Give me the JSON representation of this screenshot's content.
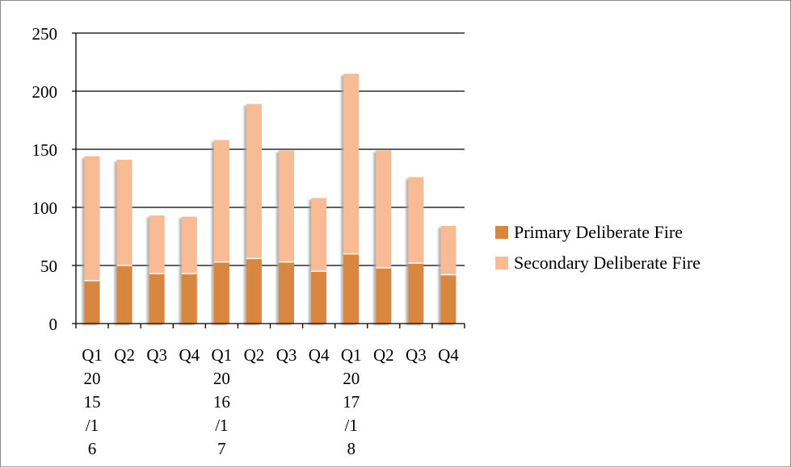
{
  "chart_data": {
    "type": "bar",
    "stacked": true,
    "categories": [
      "Q1 2015/16",
      "Q2",
      "Q3",
      "Q4",
      "Q1 2016/17",
      "Q2",
      "Q3",
      "Q4",
      "Q1 2017/18",
      "Q2",
      "Q3",
      "Q4"
    ],
    "category_tick_lines": [
      [
        "Q1",
        "20",
        "15",
        "/1",
        "6"
      ],
      [
        "Q2"
      ],
      [
        "Q3"
      ],
      [
        "Q4"
      ],
      [
        "Q1",
        "20",
        "16",
        "/1",
        "7"
      ],
      [
        "Q2"
      ],
      [
        "Q3"
      ],
      [
        "Q4"
      ],
      [
        "Q1",
        "20",
        "17",
        "/1",
        "8"
      ],
      [
        "Q2"
      ],
      [
        "Q3"
      ],
      [
        "Q4"
      ]
    ],
    "series": [
      {
        "name": "Primary Deliberate Fire",
        "color": "#d9873f",
        "values": [
          37,
          50,
          43,
          43,
          53,
          56,
          53,
          45,
          60,
          48,
          52,
          42
        ]
      },
      {
        "name": "Secondary Deliberate Fire",
        "color": "#f9bb93",
        "values": [
          107,
          91,
          50,
          49,
          105,
          133,
          96,
          63,
          155,
          101,
          74,
          42
        ]
      }
    ],
    "y_ticks": [
      "0",
      "50",
      "100",
      "150",
      "200",
      "250"
    ],
    "ylim": [
      0,
      250
    ],
    "grid": true,
    "legend_position": "right",
    "title": "",
    "xlabel": "",
    "ylabel": ""
  }
}
